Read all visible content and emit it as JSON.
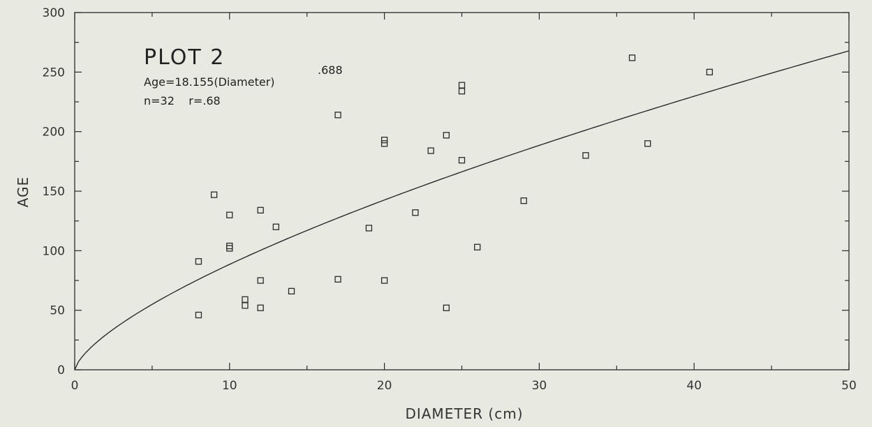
{
  "chart_data": {
    "type": "scatter",
    "title": "",
    "xlabel": "DIAMETER (cm)",
    "ylabel": "AGE",
    "xlim": [
      0,
      50
    ],
    "ylim": [
      0,
      300
    ],
    "x_ticks": [
      0,
      10,
      20,
      30,
      40,
      50
    ],
    "y_ticks": [
      0,
      50,
      100,
      150,
      200,
      250,
      300
    ],
    "grid": false,
    "legend": "none",
    "annotations": {
      "plot_label": "PLOT 2",
      "equation": "Age=18.155(Diameter)",
      "exponent": ".688",
      "stats": "n=32    r=.68"
    },
    "fit": {
      "coefficient": 18.155,
      "exponent": 0.688
    },
    "points": [
      {
        "x": 8,
        "y": 91
      },
      {
        "x": 8,
        "y": 46
      },
      {
        "x": 9,
        "y": 147
      },
      {
        "x": 10,
        "y": 130
      },
      {
        "x": 10,
        "y": 104
      },
      {
        "x": 10,
        "y": 102
      },
      {
        "x": 11,
        "y": 59
      },
      {
        "x": 11,
        "y": 54
      },
      {
        "x": 12,
        "y": 134
      },
      {
        "x": 12,
        "y": 75
      },
      {
        "x": 12,
        "y": 52
      },
      {
        "x": 13,
        "y": 120
      },
      {
        "x": 14,
        "y": 66
      },
      {
        "x": 17,
        "y": 214
      },
      {
        "x": 17,
        "y": 76
      },
      {
        "x": 19,
        "y": 119
      },
      {
        "x": 20,
        "y": 193
      },
      {
        "x": 20,
        "y": 190
      },
      {
        "x": 20,
        "y": 75
      },
      {
        "x": 22,
        "y": 132
      },
      {
        "x": 23,
        "y": 184
      },
      {
        "x": 24,
        "y": 197
      },
      {
        "x": 24,
        "y": 52
      },
      {
        "x": 25,
        "y": 239
      },
      {
        "x": 25,
        "y": 234
      },
      {
        "x": 25,
        "y": 176
      },
      {
        "x": 26,
        "y": 103
      },
      {
        "x": 29,
        "y": 142
      },
      {
        "x": 33,
        "y": 180
      },
      {
        "x": 36,
        "y": 262
      },
      {
        "x": 37,
        "y": 190
      },
      {
        "x": 41,
        "y": 250
      }
    ],
    "colors": {
      "ink": "#2a2a2a",
      "background": "#e8e9e1"
    }
  }
}
